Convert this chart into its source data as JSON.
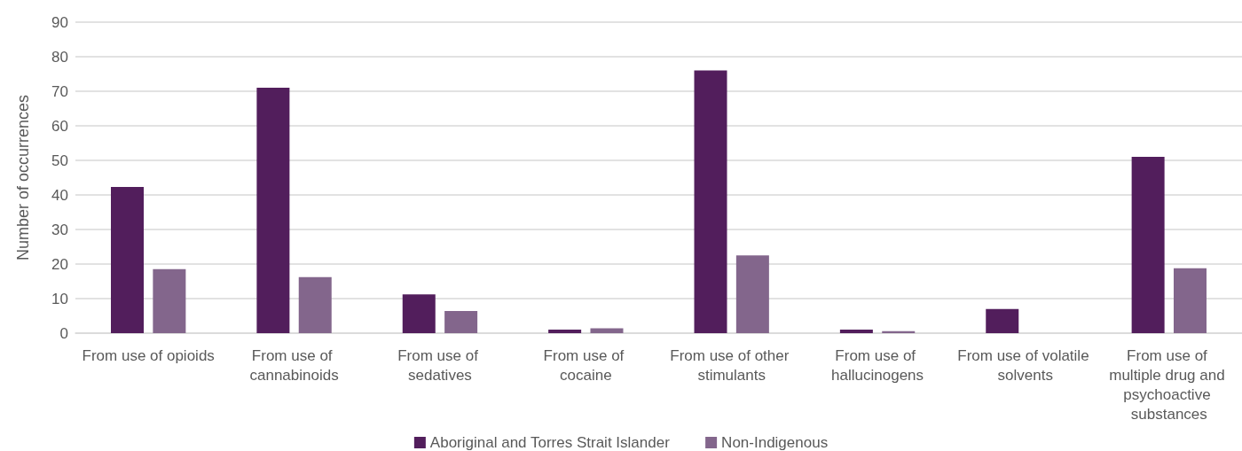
{
  "chart_data": {
    "type": "bar",
    "ylabel": "Number of occurrences",
    "categories": [
      "From use of opioids",
      "From use of cannabinoids",
      "From use of sedatives",
      "From use of cocaine",
      "From use of other stimulants",
      "From use of hallucinogens",
      "From use of volatile solvents",
      "From use of multiple drug and psychoactive substances"
    ],
    "series": [
      {
        "name": "Aboriginal and Torres Strait Islander",
        "color": "#521e5c",
        "values": [
          42.3,
          71,
          11.2,
          1,
          76,
          1,
          7,
          51
        ]
      },
      {
        "name": "Non-Indigenous",
        "color": "#83668c",
        "values": [
          18.5,
          16.2,
          6.4,
          1.4,
          22.5,
          0.6,
          0,
          18.8
        ]
      }
    ],
    "ylim": [
      0,
      90
    ],
    "yticks": [
      0,
      10,
      20,
      30,
      40,
      50,
      60,
      70,
      80,
      90
    ],
    "grid": "y",
    "legend": "bottom"
  }
}
